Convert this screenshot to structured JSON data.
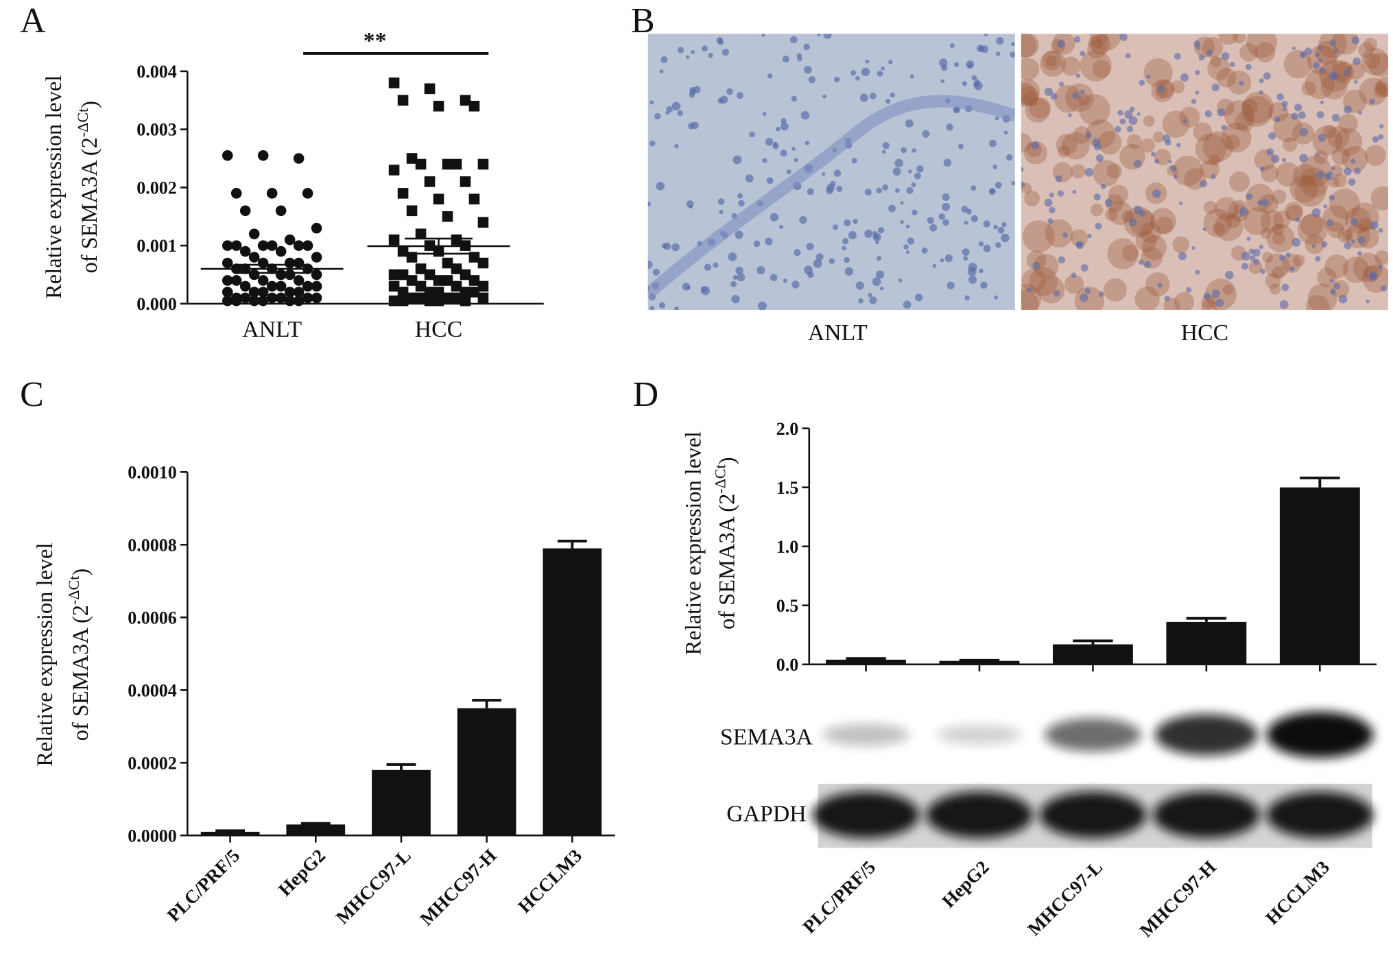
{
  "chart_data": [
    {
      "type": "dotplot",
      "panel": "A",
      "ylabel": [
        "Relative expression level",
        "of SEMA3A (2",
        "-ΔCt",
        ")"
      ],
      "categories": [
        "ANLT",
        "HCC"
      ],
      "groups": [
        {
          "marker": "circle",
          "values": [
            0.00255,
            0.00255,
            0.0025,
            0.0019,
            0.0019,
            0.0019,
            0.0016,
            0.0016,
            0.0013,
            0.0012,
            0.0011,
            0.001,
            0.001,
            0.001,
            0.001,
            0.001,
            0.001,
            0.0009,
            0.0009,
            0.0008,
            0.0008,
            0.0007,
            0.0007,
            0.0007,
            0.0007,
            0.0006,
            0.0006,
            0.0006,
            0.0006,
            0.0005,
            0.0005,
            0.0005,
            0.0005,
            0.0004,
            0.0004,
            0.0004,
            0.0004,
            0.0003,
            0.0003,
            0.0003,
            0.0003,
            0.0003,
            0.0002,
            0.0002,
            0.0002,
            0.0002,
            0.0002,
            0.0001,
            0.0001,
            0.0001,
            0.0001,
            0.0001,
            0.0001,
            5e-05,
            5e-05,
            5e-05,
            5e-05,
            5e-05,
            5e-05
          ],
          "mean": 0.0006,
          "sem": 7e-05
        },
        {
          "marker": "square",
          "values": [
            0.0038,
            0.0037,
            0.0035,
            0.0035,
            0.0034,
            0.0034,
            0.0025,
            0.0024,
            0.0024,
            0.0024,
            0.0024,
            0.0023,
            0.0021,
            0.0021,
            0.0019,
            0.0018,
            0.0018,
            0.0016,
            0.0015,
            0.0014,
            0.0012,
            0.0011,
            0.0011,
            0.001,
            0.001,
            0.0009,
            0.0009,
            0.0008,
            0.0008,
            0.0007,
            0.0007,
            0.0006,
            0.0006,
            0.0005,
            0.0005,
            0.0005,
            0.0005,
            0.0004,
            0.0004,
            0.0004,
            0.0004,
            0.0003,
            0.0003,
            0.0003,
            0.0003,
            0.0002,
            0.0002,
            0.0002,
            0.0002,
            0.0002,
            0.0001,
            0.0001,
            0.0001,
            0.0001,
            0.0001,
            5e-05,
            5e-05,
            5e-05,
            5e-05,
            5e-05
          ],
          "mean": 0.00099,
          "sem": 0.00013
        }
      ],
      "annotation": "**",
      "color": "#111111",
      "ylim": [
        0,
        0.004
      ],
      "yticks": [
        {
          "value": 0,
          "label": "0.000"
        },
        {
          "value": 0.001,
          "label": "0.001"
        },
        {
          "value": 0.002,
          "label": "0.002"
        },
        {
          "value": 0.003,
          "label": "0.003"
        },
        {
          "value": 0.004,
          "label": "0.004"
        }
      ]
    },
    {
      "type": "bar",
      "panel": "C",
      "ylabel": [
        "Relative expression level",
        "of SEMA3A (2",
        "-ΔCt",
        ")"
      ],
      "categories": [
        "PLC/PRF/5",
        "HepG2",
        "MHCC97-L",
        "MHCC97-H",
        "HCCLM3"
      ],
      "values": [
        1e-05,
        3e-05,
        0.00018,
        0.00035,
        0.00079
      ],
      "errors": [
        3e-06,
        3e-06,
        1.5e-05,
        2.2e-05,
        2e-05
      ],
      "color": "#111111",
      "ylim": [
        0,
        0.001
      ],
      "yticks": [
        {
          "value": 0,
          "label": "0.0000"
        },
        {
          "value": 0.0002,
          "label": "0.0002"
        },
        {
          "value": 0.0004,
          "label": "0.0004"
        },
        {
          "value": 0.0006,
          "label": "0.0006"
        },
        {
          "value": 0.0008,
          "label": "0.0008"
        },
        {
          "value": 0.001,
          "label": "0.0010"
        }
      ]
    },
    {
      "type": "bar",
      "panel": "D",
      "ylabel": [
        "Relative expression level",
        "of SEMA3A (2",
        "-ΔCt",
        ")"
      ],
      "categories": [
        "PLC/PRF/5",
        "HepG2",
        "MHCC97-L",
        "MHCC97-H",
        "HCCLM3"
      ],
      "values": [
        0.04,
        0.03,
        0.17,
        0.36,
        1.5
      ],
      "errors": [
        0.01,
        0.005,
        0.03,
        0.03,
        0.08
      ],
      "blot_labels": [
        "SEMA3A",
        "GAPDH"
      ],
      "color": "#111111",
      "ylim": [
        0,
        2
      ],
      "yticks": [
        {
          "value": 0,
          "label": "0.0"
        },
        {
          "value": 0.5,
          "label": "0.5"
        },
        {
          "value": 1,
          "label": "1.0"
        },
        {
          "value": 1.5,
          "label": "1.5"
        },
        {
          "value": 2,
          "label": "2.0"
        }
      ]
    }
  ],
  "images": {
    "panel": "B",
    "labels": [
      "ANLT",
      "HCC"
    ]
  }
}
